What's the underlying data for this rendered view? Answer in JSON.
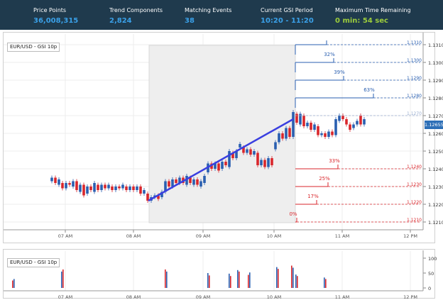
{
  "header": {
    "stats": [
      {
        "label": "Price Points",
        "value": "36,008,315",
        "color": "#3aa0e8"
      },
      {
        "label": "Trend Components",
        "value": "2,824",
        "color": "#3aa0e8"
      },
      {
        "label": "Matching Events",
        "value": "38",
        "color": "#3aa0e8"
      },
      {
        "label": "Current GSI Period",
        "value": "10:20 - 11:20",
        "color": "#3aa0e8"
      },
      {
        "label": "Maximum Time Remaining",
        "value": "0 min: 54 sec",
        "color": "#9ccc3c"
      }
    ]
  },
  "main_chart": {
    "title": "EUR/USD - GSI 10p",
    "current_price": "1.12655",
    "y_ticks": [
      "1.1310",
      "1.1300",
      "1.1290",
      "1.1280",
      "1.1270",
      "1.1260",
      "1.1250",
      "1.1240",
      "1.1230",
      "1.1220",
      "1.1210"
    ],
    "x_ticks": [
      "07 AM",
      "08 AM",
      "09 AM",
      "10 AM",
      "11 AM",
      "12 PM"
    ],
    "up_levels": [
      {
        "pct": "",
        "price": "1.1310"
      },
      {
        "pct": "32%",
        "price": "1.1300"
      },
      {
        "pct": "39%",
        "price": "1.1290"
      },
      {
        "pct": "63%",
        "price": "1.1280"
      },
      {
        "pct": "",
        "price": "1.1270"
      }
    ],
    "down_levels": [
      {
        "pct": "33%",
        "price": "1.1240"
      },
      {
        "pct": "25%",
        "price": "1.1230"
      },
      {
        "pct": "17%",
        "price": "1.1220"
      },
      {
        "pct": "0%",
        "price": "1.1210"
      }
    ]
  },
  "volume_chart": {
    "title": "EUR/USD - GSI 10p",
    "y_ticks": [
      "100",
      "50",
      "0"
    ],
    "x_ticks": [
      "07 AM",
      "08 AM",
      "09 AM",
      "10 AM",
      "11 AM",
      "12 PM"
    ]
  },
  "colors": {
    "up": "#2a5fb0",
    "down": "#d9262b",
    "trend": "#3a3fe0",
    "header_bg": "#1f3a4d"
  }
}
